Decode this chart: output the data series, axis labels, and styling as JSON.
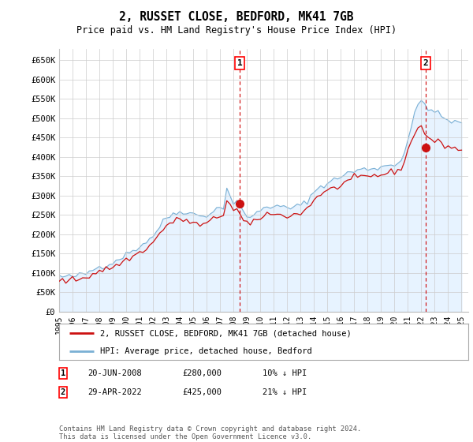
{
  "title": "2, RUSSET CLOSE, BEDFORD, MK41 7GB",
  "subtitle": "Price paid vs. HM Land Registry's House Price Index (HPI)",
  "ylabel_ticks": [
    "£0",
    "£50K",
    "£100K",
    "£150K",
    "£200K",
    "£250K",
    "£300K",
    "£350K",
    "£400K",
    "£450K",
    "£500K",
    "£550K",
    "£600K",
    "£650K"
  ],
  "ytick_values": [
    0,
    50000,
    100000,
    150000,
    200000,
    250000,
    300000,
    350000,
    400000,
    450000,
    500000,
    550000,
    600000,
    650000
  ],
  "ylim": [
    0,
    680000
  ],
  "xlim_start": 1995.0,
  "xlim_end": 2025.5,
  "background_color": "#ffffff",
  "grid_color": "#cccccc",
  "hpi_color": "#7ab0d4",
  "hpi_fill_color": "#ddeeff",
  "price_color": "#cc1111",
  "marker1_date_x": 2008.47,
  "marker1_y": 280000,
  "marker2_date_x": 2022.33,
  "marker2_y": 425000,
  "legend_price_label": "2, RUSSET CLOSE, BEDFORD, MK41 7GB (detached house)",
  "legend_hpi_label": "HPI: Average price, detached house, Bedford",
  "table_row1": [
    "1",
    "20-JUN-2008",
    "£280,000",
    "10% ↓ HPI"
  ],
  "table_row2": [
    "2",
    "29-APR-2022",
    "£425,000",
    "21% ↓ HPI"
  ],
  "footer": "Contains HM Land Registry data © Crown copyright and database right 2024.\nThis data is licensed under the Open Government Licence v3.0.",
  "hpi_data_x": [
    1995.0,
    1995.25,
    1995.5,
    1995.75,
    1996.0,
    1996.25,
    1996.5,
    1996.75,
    1997.0,
    1997.25,
    1997.5,
    1997.75,
    1998.0,
    1998.25,
    1998.5,
    1998.75,
    1999.0,
    1999.25,
    1999.5,
    1999.75,
    2000.0,
    2000.25,
    2000.5,
    2000.75,
    2001.0,
    2001.25,
    2001.5,
    2001.75,
    2002.0,
    2002.25,
    2002.5,
    2002.75,
    2003.0,
    2003.25,
    2003.5,
    2003.75,
    2004.0,
    2004.25,
    2004.5,
    2004.75,
    2005.0,
    2005.25,
    2005.5,
    2005.75,
    2006.0,
    2006.25,
    2006.5,
    2006.75,
    2007.0,
    2007.25,
    2007.5,
    2007.75,
    2008.0,
    2008.25,
    2008.5,
    2008.75,
    2009.0,
    2009.25,
    2009.5,
    2009.75,
    2010.0,
    2010.25,
    2010.5,
    2010.75,
    2011.0,
    2011.25,
    2011.5,
    2011.75,
    2012.0,
    2012.25,
    2012.5,
    2012.75,
    2013.0,
    2013.25,
    2013.5,
    2013.75,
    2014.0,
    2014.25,
    2014.5,
    2014.75,
    2015.0,
    2015.25,
    2015.5,
    2015.75,
    2016.0,
    2016.25,
    2016.5,
    2016.75,
    2017.0,
    2017.25,
    2017.5,
    2017.75,
    2018.0,
    2018.25,
    2018.5,
    2018.75,
    2019.0,
    2019.25,
    2019.5,
    2019.75,
    2020.0,
    2020.25,
    2020.5,
    2020.75,
    2021.0,
    2021.25,
    2021.5,
    2021.75,
    2022.0,
    2022.25,
    2022.5,
    2022.75,
    2023.0,
    2023.25,
    2023.5,
    2023.75,
    2024.0,
    2024.25,
    2024.5,
    2024.75,
    2025.0
  ],
  "hpi_data_y": [
    92000,
    90000,
    89000,
    90000,
    91000,
    92000,
    94000,
    96000,
    98000,
    103000,
    108000,
    113000,
    116000,
    118000,
    121000,
    124000,
    127000,
    132000,
    138000,
    143000,
    148000,
    153000,
    158000,
    163000,
    168000,
    175000,
    182000,
    188000,
    196000,
    208000,
    220000,
    232000,
    242000,
    248000,
    252000,
    256000,
    258000,
    260000,
    258000,
    255000,
    252000,
    250000,
    248000,
    248000,
    250000,
    255000,
    260000,
    265000,
    268000,
    272000,
    318000,
    300000,
    280000,
    285000,
    270000,
    255000,
    248000,
    245000,
    248000,
    255000,
    262000,
    270000,
    275000,
    272000,
    268000,
    270000,
    272000,
    270000,
    268000,
    268000,
    270000,
    272000,
    275000,
    280000,
    288000,
    298000,
    308000,
    318000,
    325000,
    328000,
    332000,
    336000,
    340000,
    345000,
    350000,
    355000,
    358000,
    360000,
    362000,
    365000,
    368000,
    368000,
    368000,
    370000,
    372000,
    372000,
    374000,
    376000,
    378000,
    380000,
    382000,
    385000,
    392000,
    415000,
    445000,
    475000,
    508000,
    535000,
    545000,
    538000,
    528000,
    522000,
    515000,
    510000,
    505000,
    498000,
    495000,
    492000,
    490000,
    488000,
    485000
  ],
  "price_data_x": [
    1995.0,
    1995.25,
    1995.5,
    1995.75,
    1996.0,
    1996.25,
    1996.5,
    1996.75,
    1997.0,
    1997.25,
    1997.5,
    1997.75,
    1998.0,
    1998.25,
    1998.5,
    1998.75,
    1999.0,
    1999.25,
    1999.5,
    1999.75,
    2000.0,
    2000.25,
    2000.5,
    2000.75,
    2001.0,
    2001.25,
    2001.5,
    2001.75,
    2002.0,
    2002.25,
    2002.5,
    2002.75,
    2003.0,
    2003.25,
    2003.5,
    2003.75,
    2004.0,
    2004.25,
    2004.5,
    2004.75,
    2005.0,
    2005.25,
    2005.5,
    2005.75,
    2006.0,
    2006.25,
    2006.5,
    2006.75,
    2007.0,
    2007.25,
    2007.5,
    2007.75,
    2008.0,
    2008.25,
    2008.5,
    2008.75,
    2009.0,
    2009.25,
    2009.5,
    2009.75,
    2010.0,
    2010.25,
    2010.5,
    2010.75,
    2011.0,
    2011.25,
    2011.5,
    2011.75,
    2012.0,
    2012.25,
    2012.5,
    2012.75,
    2013.0,
    2013.25,
    2013.5,
    2013.75,
    2014.0,
    2014.25,
    2014.5,
    2014.75,
    2015.0,
    2015.25,
    2015.5,
    2015.75,
    2016.0,
    2016.25,
    2016.5,
    2016.75,
    2017.0,
    2017.25,
    2017.5,
    2017.75,
    2018.0,
    2018.25,
    2018.5,
    2018.75,
    2019.0,
    2019.25,
    2019.5,
    2019.75,
    2020.0,
    2020.25,
    2020.5,
    2020.75,
    2021.0,
    2021.25,
    2021.5,
    2021.75,
    2022.0,
    2022.25,
    2022.5,
    2022.75,
    2023.0,
    2023.25,
    2023.5,
    2023.75,
    2024.0,
    2024.25,
    2024.5,
    2024.75,
    2025.0
  ],
  "price_data_y": [
    82000,
    80000,
    79000,
    80000,
    82000,
    83000,
    85000,
    87000,
    89000,
    93000,
    98000,
    102000,
    105000,
    107000,
    110000,
    112000,
    115000,
    119000,
    124000,
    129000,
    133000,
    138000,
    143000,
    148000,
    152000,
    158000,
    165000,
    170000,
    178000,
    190000,
    202000,
    213000,
    222000,
    228000,
    232000,
    236000,
    238000,
    238000,
    236000,
    232000,
    228000,
    226000,
    224000,
    224000,
    228000,
    233000,
    238000,
    243000,
    248000,
    252000,
    290000,
    278000,
    260000,
    265000,
    248000,
    235000,
    228000,
    225000,
    228000,
    235000,
    242000,
    250000,
    255000,
    252000,
    248000,
    250000,
    252000,
    250000,
    248000,
    248000,
    250000,
    252000,
    255000,
    260000,
    268000,
    278000,
    288000,
    298000,
    305000,
    308000,
    312000,
    316000,
    318000,
    322000,
    328000,
    333000,
    338000,
    340000,
    342000,
    345000,
    348000,
    348000,
    348000,
    350000,
    352000,
    352000,
    354000,
    356000,
    358000,
    360000,
    362000,
    365000,
    372000,
    390000,
    415000,
    440000,
    462000,
    478000,
    478000,
    462000,
    450000,
    445000,
    440000,
    438000,
    435000,
    430000,
    428000,
    425000,
    422000,
    420000,
    418000
  ]
}
